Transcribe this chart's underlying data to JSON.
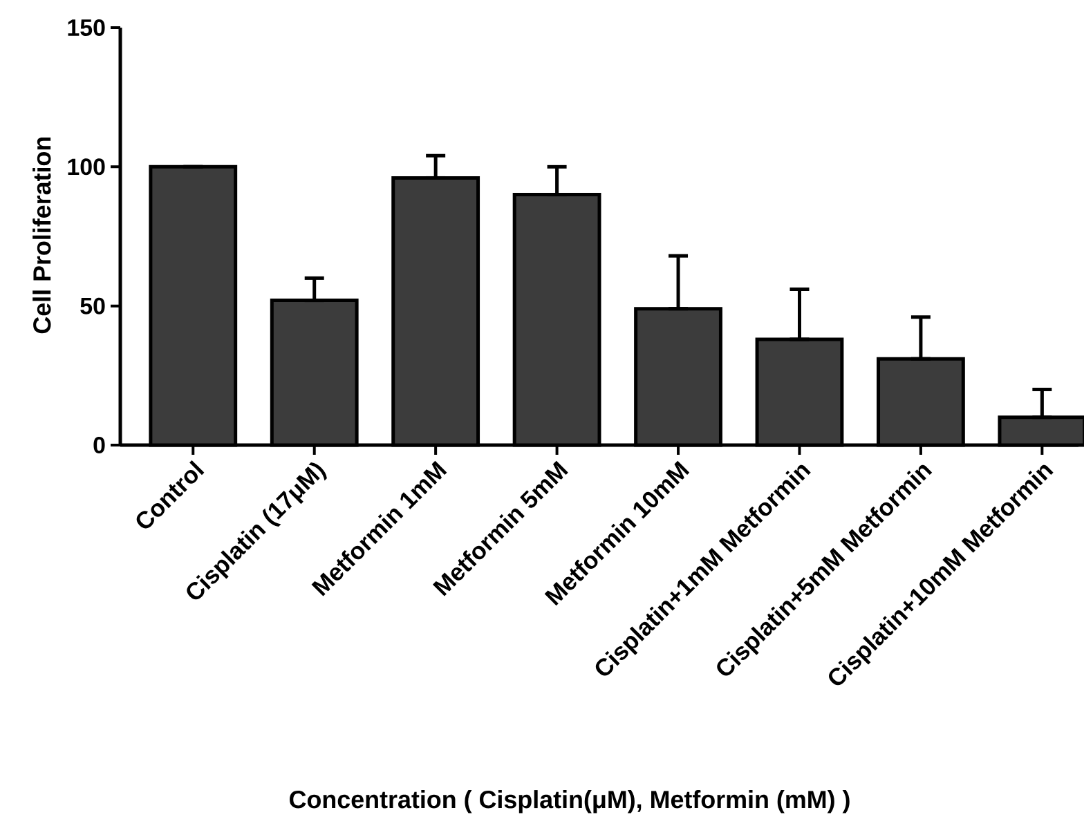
{
  "chart_data": {
    "type": "bar",
    "xlabel": "Concentration ( Cisplatin(μM), Metformin (mM) )",
    "ylabel": "Cell Proliferation",
    "categories": [
      "Control",
      "Cisplatin (17μM)",
      "Metformin 1mM",
      "Metformin 5mM",
      "Metformin 10mM",
      "Cisplatin+1mM Metformin",
      "Cisplatin+5mM Metformin",
      "Cisplatin+10mM Metformin"
    ],
    "values": [
      100,
      52,
      96,
      90,
      49,
      38,
      31,
      10
    ],
    "errors": [
      null,
      [
        52,
        60
      ],
      [
        96,
        104
      ],
      [
        90,
        100
      ],
      [
        49,
        68
      ],
      [
        38,
        56
      ],
      [
        31,
        46
      ],
      [
        10,
        20
      ]
    ],
    "color": "#3c3c3c",
    "ylim": [
      0,
      150
    ],
    "yticks": [
      0,
      50,
      100,
      150
    ],
    "grid": false
  }
}
